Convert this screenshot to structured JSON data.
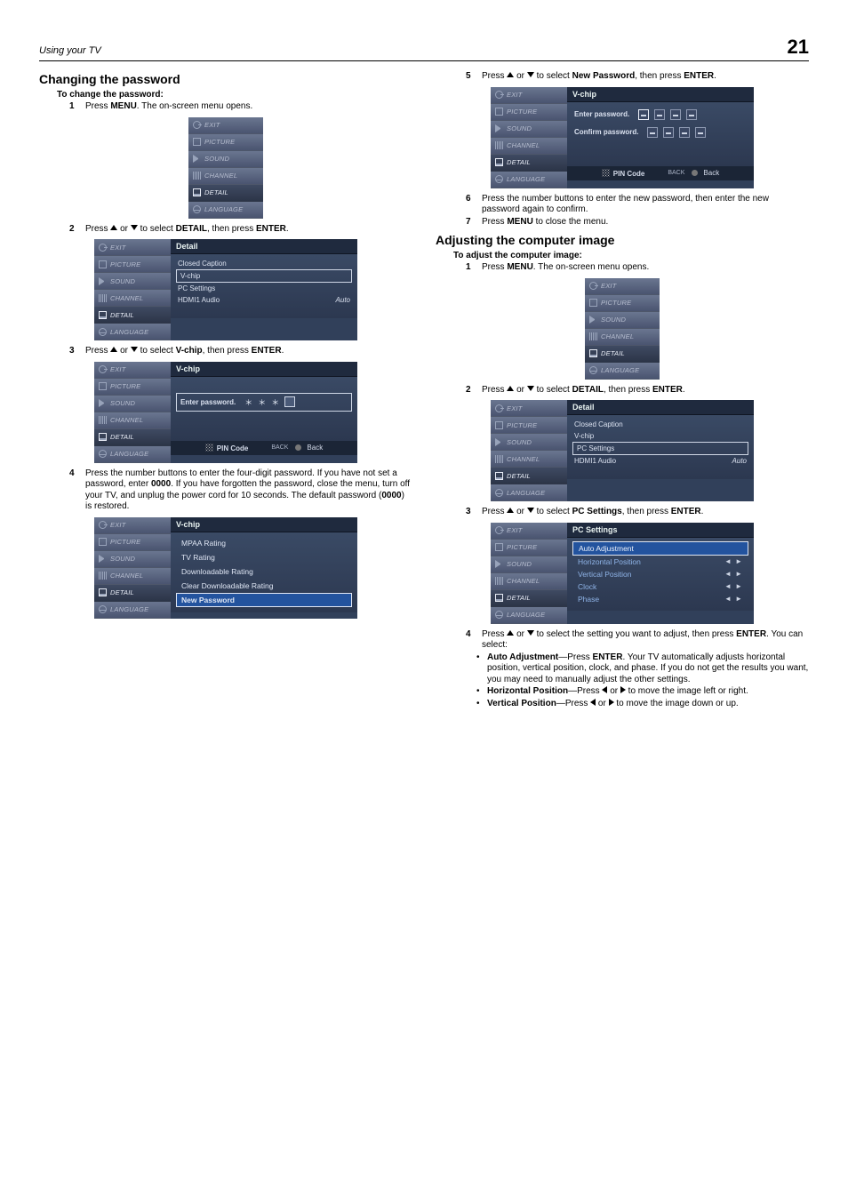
{
  "header": {
    "left": "Using your TV",
    "page": "21"
  },
  "nav": {
    "items": [
      {
        "key": "exit",
        "label": "EXIT"
      },
      {
        "key": "picture",
        "label": "PICTURE"
      },
      {
        "key": "sound",
        "label": "SOUND"
      },
      {
        "key": "channel",
        "label": "CHANNEL"
      },
      {
        "key": "detail",
        "label": "DETAIL"
      },
      {
        "key": "language",
        "label": "LANGUAGE"
      }
    ]
  },
  "left": {
    "heading": "Changing the password",
    "subheading": "To change the password:",
    "step1": {
      "n": "1",
      "a": "Press ",
      "b": "MENU",
      "c": ". The on-screen menu opens."
    },
    "fig1_active": "DETAIL",
    "step2": {
      "n": "2",
      "a": "Press ",
      "b": " or ",
      "c": " to select ",
      "d": "DETAIL",
      "e": ", then press ",
      "f": "ENTER",
      "g": "."
    },
    "detailPanel": {
      "title": "Detail",
      "rows": [
        {
          "label": "Closed Caption"
        },
        {
          "label": "V-chip",
          "boxed": true
        },
        {
          "label": "PC Settings"
        },
        {
          "label": "HDMI1 Audio",
          "value": "Auto"
        }
      ]
    },
    "fig2_active": "DETAIL",
    "step3": {
      "n": "3",
      "a": "Press ",
      "b": " or ",
      "c": " to select ",
      "d": "V-chip",
      "e": ", then press ",
      "f": "ENTER",
      "g": "."
    },
    "vchipEnter": {
      "title": "V-chip",
      "enterLabel": "Enter password.",
      "stars": [
        "＊",
        "＊",
        "＊"
      ],
      "footer": {
        "pin": "PIN Code",
        "backLab": "BACK",
        "back": "Back"
      }
    },
    "fig3_active": "DETAIL",
    "step4": {
      "n": "4",
      "text": "Press the number buttons to enter the four-digit password. If you have not set a password, enter ",
      "b1": "0000",
      "mid": ". If you have forgotten the password, close the menu, turn off your TV, and unplug the power cord for 10 seconds. The default password (",
      "b2": "0000",
      "end": ") is restored."
    },
    "vchipList": {
      "title": "V-chip",
      "items": [
        "MPAA Rating",
        "TV Rating",
        "Downloadable Rating",
        "Clear Downloadable Rating",
        "New Password"
      ],
      "selected": "New Password"
    },
    "fig4_active": "DETAIL"
  },
  "right": {
    "step5": {
      "n": "5",
      "a": "Press ",
      "b": " or ",
      "c": " to select ",
      "d": "New Password",
      "e": ", then press ",
      "f": "ENTER",
      "g": "."
    },
    "newpw": {
      "title": "V-chip",
      "enterLabel": "Enter password.",
      "confirmLabel": "Confirm password.",
      "footer": {
        "pin": "PIN Code",
        "backLab": "BACK",
        "back": "Back"
      }
    },
    "figA_active": "DETAIL",
    "step6": {
      "n": "6",
      "text": "Press the number buttons to enter the new password, then enter the new password again to confirm."
    },
    "step7": {
      "n": "7",
      "a": "Press ",
      "b": "MENU",
      "c": " to close the menu."
    },
    "heading2": "Adjusting the computer image",
    "subheading2": "To adjust the computer image:",
    "stepB1": {
      "n": "1",
      "a": "Press ",
      "b": "MENU",
      "c": ". The on-screen menu opens."
    },
    "figB1_active": "DETAIL",
    "stepB2": {
      "n": "2",
      "a": "Press ",
      "b": " or ",
      "c": " to select ",
      "d": "DETAIL",
      "e": ", then press ",
      "f": "ENTER",
      "g": "."
    },
    "detailPanel2": {
      "title": "Detail",
      "rows": [
        {
          "label": "Closed Caption"
        },
        {
          "label": "V-chip"
        },
        {
          "label": "PC Settings",
          "boxed": true
        },
        {
          "label": "HDMI1 Audio",
          "value": "Auto"
        }
      ]
    },
    "figB2_active": "DETAIL",
    "stepB3": {
      "n": "3",
      "a": "Press ",
      "b": " or ",
      "c": " to select ",
      "d": "PC Settings",
      "e": ", then press ",
      "f": "ENTER",
      "g": "."
    },
    "pcPanel": {
      "title": "PC Settings",
      "rows": [
        {
          "label": "Auto Adjustment",
          "sel": true
        },
        {
          "label": "Horizontal Position",
          "arrows": true
        },
        {
          "label": "Vertical Position",
          "arrows": true
        },
        {
          "label": "Clock",
          "arrows": true
        },
        {
          "label": "Phase",
          "arrows": true
        }
      ]
    },
    "figB3_active": "DETAIL",
    "stepB4": {
      "n": "4",
      "a": "Press ",
      "b": " or ",
      "c": " to select the setting you want to adjust, then press ",
      "d": "ENTER",
      "e": ". You can select:"
    },
    "bullets": {
      "b1a": "Auto Adjustment",
      "b1b": "—Press ",
      "b1c": "ENTER",
      "b1d": ". Your TV automatically adjusts horizontal position, vertical position, clock, and phase. If you do not get the results you want, you may need to manually adjust the other settings.",
      "b2a": "Horizontal Position",
      "b2b": "—Press ",
      "b2c": " or ",
      "b2d": " to move the image left or right.",
      "b3a": "Vertical Position",
      "b3b": "—Press ",
      "b3c": " or ",
      "b3d": " to move the image down or up."
    }
  }
}
